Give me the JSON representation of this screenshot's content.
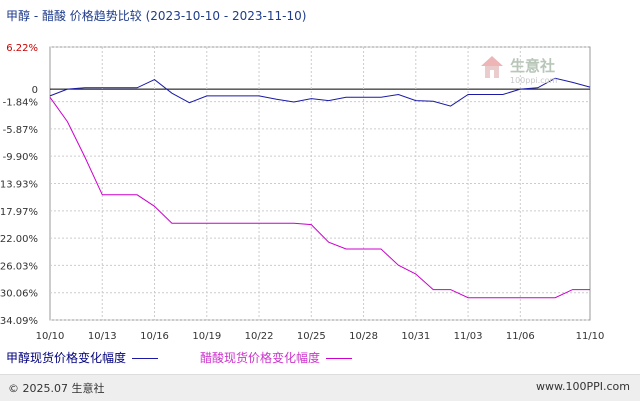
{
  "title": {
    "main": "甲醇 - 醋酸 价格趋势比较",
    "range": "(2023-10-10 - 2023-11-10)"
  },
  "watermark": {
    "text": "生意社",
    "subtext": "100ppi.com"
  },
  "footer": {
    "copyright": "© 2025.07 生意社",
    "site": "www.100PPI.com"
  },
  "colors": {
    "methanol": "#1a1aa6",
    "acetic": "#cc00cc",
    "grid": "#cccccc",
    "zero": "#000000"
  },
  "chart_data": {
    "type": "line",
    "x_ticks": [
      "10/10",
      "10/13",
      "10/16",
      "10/19",
      "10/22",
      "10/25",
      "10/28",
      "10/31",
      "11/03",
      "11/06",
      "11/10"
    ],
    "y_ticks": [
      "6.22%",
      "0",
      "-1.84%",
      "-5.87%",
      "-9.90%",
      "-13.93%",
      "-17.97%",
      "-22.00%",
      "-26.03%",
      "-30.06%",
      "-34.09%"
    ],
    "y_tick_values": [
      6.22,
      0,
      -1.84,
      -5.87,
      -9.9,
      -13.93,
      -17.97,
      -22.0,
      -26.03,
      -30.06,
      -34.09
    ],
    "ylim": [
      -34.09,
      6.22
    ],
    "xlim": [
      "2023-10-10",
      "2023-11-10"
    ],
    "grid": true,
    "legend_position": "bottom",
    "series": [
      {
        "name": "甲醇现货价格变化幅度",
        "color": "#1a1aa6",
        "points": [
          [
            "2023-10-10",
            -1.0
          ],
          [
            "2023-10-11",
            0.0
          ],
          [
            "2023-10-12",
            0.2
          ],
          [
            "2023-10-13",
            0.2
          ],
          [
            "2023-10-14",
            0.2
          ],
          [
            "2023-10-15",
            0.2
          ],
          [
            "2023-10-16",
            1.4
          ],
          [
            "2023-10-17",
            -0.6
          ],
          [
            "2023-10-18",
            -2.0
          ],
          [
            "2023-10-19",
            -1.0
          ],
          [
            "2023-10-20",
            -1.0
          ],
          [
            "2023-10-21",
            -1.0
          ],
          [
            "2023-10-22",
            -1.0
          ],
          [
            "2023-10-23",
            -1.5
          ],
          [
            "2023-10-24",
            -1.9
          ],
          [
            "2023-10-25",
            -1.4
          ],
          [
            "2023-10-26",
            -1.7
          ],
          [
            "2023-10-27",
            -1.2
          ],
          [
            "2023-10-28",
            -1.2
          ],
          [
            "2023-10-29",
            -1.2
          ],
          [
            "2023-10-30",
            -0.8
          ],
          [
            "2023-10-31",
            -1.7
          ],
          [
            "2023-11-01",
            -1.8
          ],
          [
            "2023-11-02",
            -2.5
          ],
          [
            "2023-11-03",
            -0.8
          ],
          [
            "2023-11-04",
            -0.8
          ],
          [
            "2023-11-05",
            -0.8
          ],
          [
            "2023-11-06",
            0.0
          ],
          [
            "2023-11-07",
            0.2
          ],
          [
            "2023-11-08",
            1.6
          ],
          [
            "2023-11-09",
            1.0
          ],
          [
            "2023-11-10",
            0.3
          ]
        ]
      },
      {
        "name": "醋酸现货价格变化幅度",
        "color": "#cc00cc",
        "points": [
          [
            "2023-10-10",
            -1.2
          ],
          [
            "2023-10-11",
            -4.8
          ],
          [
            "2023-10-12",
            -10.0
          ],
          [
            "2023-10-13",
            -15.6
          ],
          [
            "2023-10-14",
            -15.6
          ],
          [
            "2023-10-15",
            -15.6
          ],
          [
            "2023-10-16",
            -17.3
          ],
          [
            "2023-10-17",
            -19.8
          ],
          [
            "2023-10-18",
            -19.8
          ],
          [
            "2023-10-19",
            -19.8
          ],
          [
            "2023-10-20",
            -19.8
          ],
          [
            "2023-10-21",
            -19.8
          ],
          [
            "2023-10-22",
            -19.8
          ],
          [
            "2023-10-23",
            -19.8
          ],
          [
            "2023-10-24",
            -19.8
          ],
          [
            "2023-10-25",
            -20.0
          ],
          [
            "2023-10-26",
            -22.6
          ],
          [
            "2023-10-27",
            -23.6
          ],
          [
            "2023-10-28",
            -23.6
          ],
          [
            "2023-10-29",
            -23.6
          ],
          [
            "2023-10-30",
            -26.0
          ],
          [
            "2023-10-31",
            -27.3
          ],
          [
            "2023-11-01",
            -29.6
          ],
          [
            "2023-11-02",
            -29.6
          ],
          [
            "2023-11-03",
            -30.8
          ],
          [
            "2023-11-04",
            -30.8
          ],
          [
            "2023-11-05",
            -30.8
          ],
          [
            "2023-11-06",
            -30.8
          ],
          [
            "2023-11-07",
            -30.8
          ],
          [
            "2023-11-08",
            -30.8
          ],
          [
            "2023-11-09",
            -29.6
          ],
          [
            "2023-11-10",
            -29.6
          ]
        ]
      }
    ]
  }
}
